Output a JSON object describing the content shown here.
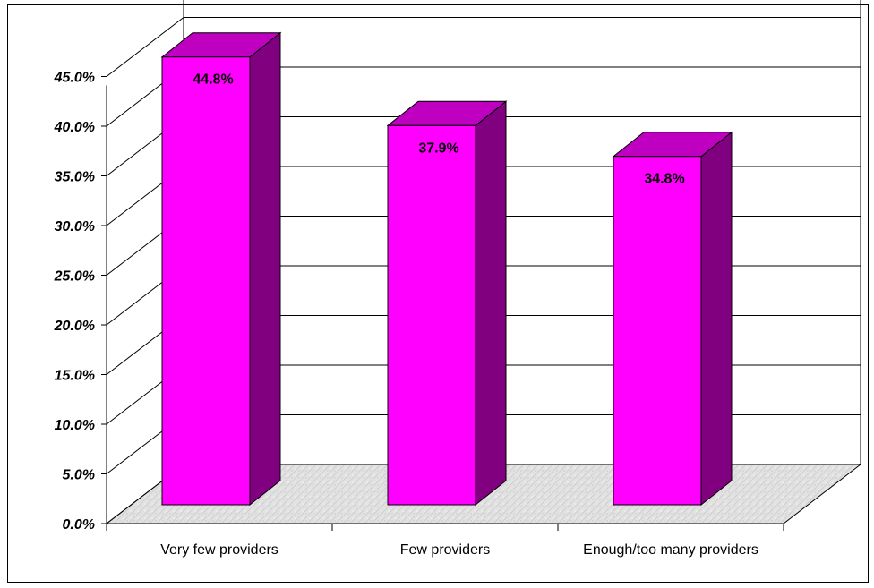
{
  "chart_data": {
    "type": "bar",
    "categories": [
      "Very few providers",
      "Few providers",
      "Enough/too many providers"
    ],
    "values": [
      44.8,
      37.9,
      34.8
    ],
    "data_labels": [
      "44.8%",
      "37.9%",
      "34.8%"
    ],
    "y_ticks": [
      "0.0%",
      "5.0%",
      "10.0%",
      "15.0%",
      "20.0%",
      "25.0%",
      "30.0%",
      "35.0%",
      "40.0%",
      "45.0%"
    ],
    "ylim": [
      0,
      50
    ],
    "grid": true,
    "style": "3d",
    "colors": {
      "bar_front": "#ff00ff",
      "bar_side": "#800080",
      "bar_top": "#c000c0",
      "floor": "#d9d9d9"
    }
  }
}
